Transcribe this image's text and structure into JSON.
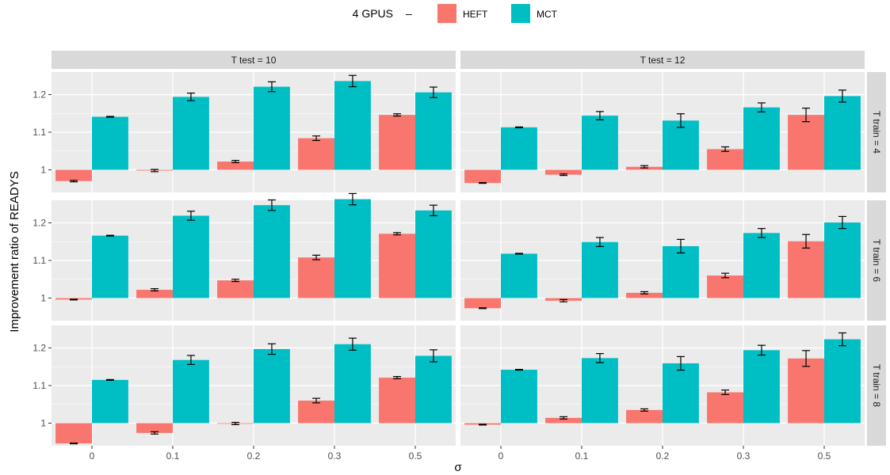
{
  "legend": {
    "title": "4 GPUS",
    "separator": "–"
  },
  "chart_data": {
    "type": "bar",
    "xlabel": "σ",
    "ylabel": "Improvement ratio of READYS",
    "categories": [
      "0",
      "0.1",
      "0.2",
      "0.3",
      "0.5"
    ],
    "ylim": [
      0.94,
      1.26
    ],
    "yticks": [
      1.0,
      1.1,
      1.2
    ],
    "ytick_labels": [
      "1",
      "1.1",
      "1.2"
    ],
    "legend_position": "top",
    "series_names": [
      "HEFT",
      "MCT"
    ],
    "colors": {
      "HEFT": "#F8766D",
      "MCT": "#00BFC4"
    },
    "col_labels": [
      "T test = 10",
      "T test = 12"
    ],
    "row_labels": [
      "T train = 4",
      "T train = 6",
      "T train = 8"
    ],
    "panels": [
      {
        "col": "T test = 10",
        "row": "T train = 4",
        "series": [
          {
            "name": "HEFT",
            "values": [
              0.97,
              0.998,
              1.022,
              1.084,
              1.146
            ],
            "errors": [
              0.002,
              0.003,
              0.003,
              0.006,
              0.003
            ]
          },
          {
            "name": "MCT",
            "values": [
              1.141,
              1.194,
              1.221,
              1.236,
              1.206
            ],
            "errors": [
              0.001,
              0.01,
              0.013,
              0.015,
              0.014
            ]
          }
        ]
      },
      {
        "col": "T test = 12",
        "row": "T train = 4",
        "series": [
          {
            "name": "HEFT",
            "values": [
              0.965,
              0.987,
              1.008,
              1.055,
              1.146
            ],
            "errors": [
              0.001,
              0.002,
              0.003,
              0.006,
              0.018
            ]
          },
          {
            "name": "MCT",
            "values": [
              1.113,
              1.144,
              1.131,
              1.166,
              1.196
            ],
            "errors": [
              0.001,
              0.011,
              0.018,
              0.012,
              0.016
            ]
          }
        ]
      },
      {
        "col": "T test = 10",
        "row": "T train = 6",
        "series": [
          {
            "name": "HEFT",
            "values": [
              0.996,
              1.022,
              1.047,
              1.108,
              1.171
            ],
            "errors": [
              0.001,
              0.003,
              0.003,
              0.006,
              0.003
            ]
          },
          {
            "name": "MCT",
            "values": [
              1.166,
              1.219,
              1.247,
              1.263,
              1.233
            ],
            "errors": [
              0.001,
              0.012,
              0.014,
              0.015,
              0.014
            ]
          }
        ]
      },
      {
        "col": "T test = 12",
        "row": "T train = 6",
        "series": [
          {
            "name": "HEFT",
            "values": [
              0.973,
              0.993,
              1.014,
              1.06,
              1.151
            ],
            "errors": [
              0.001,
              0.003,
              0.003,
              0.006,
              0.018
            ]
          },
          {
            "name": "MCT",
            "values": [
              1.118,
              1.149,
              1.138,
              1.173,
              1.201
            ],
            "errors": [
              0.001,
              0.012,
              0.018,
              0.012,
              0.016
            ]
          }
        ]
      },
      {
        "col": "T test = 10",
        "row": "T train = 8",
        "series": [
          {
            "name": "HEFT",
            "values": [
              0.946,
              0.974,
              0.999,
              1.06,
              1.121
            ],
            "errors": [
              0.001,
              0.003,
              0.003,
              0.006,
              0.003
            ]
          },
          {
            "name": "MCT",
            "values": [
              1.115,
              1.168,
              1.197,
              1.21,
              1.179
            ],
            "errors": [
              0.001,
              0.012,
              0.014,
              0.016,
              0.016
            ]
          }
        ]
      },
      {
        "col": "T test = 12",
        "row": "T train = 8",
        "series": [
          {
            "name": "HEFT",
            "values": [
              0.996,
              1.014,
              1.035,
              1.082,
              1.172
            ],
            "errors": [
              0.001,
              0.003,
              0.003,
              0.006,
              0.021
            ]
          },
          {
            "name": "MCT",
            "values": [
              1.142,
              1.173,
              1.159,
              1.194,
              1.223
            ],
            "errors": [
              0.001,
              0.012,
              0.018,
              0.013,
              0.017
            ]
          }
        ]
      }
    ]
  }
}
